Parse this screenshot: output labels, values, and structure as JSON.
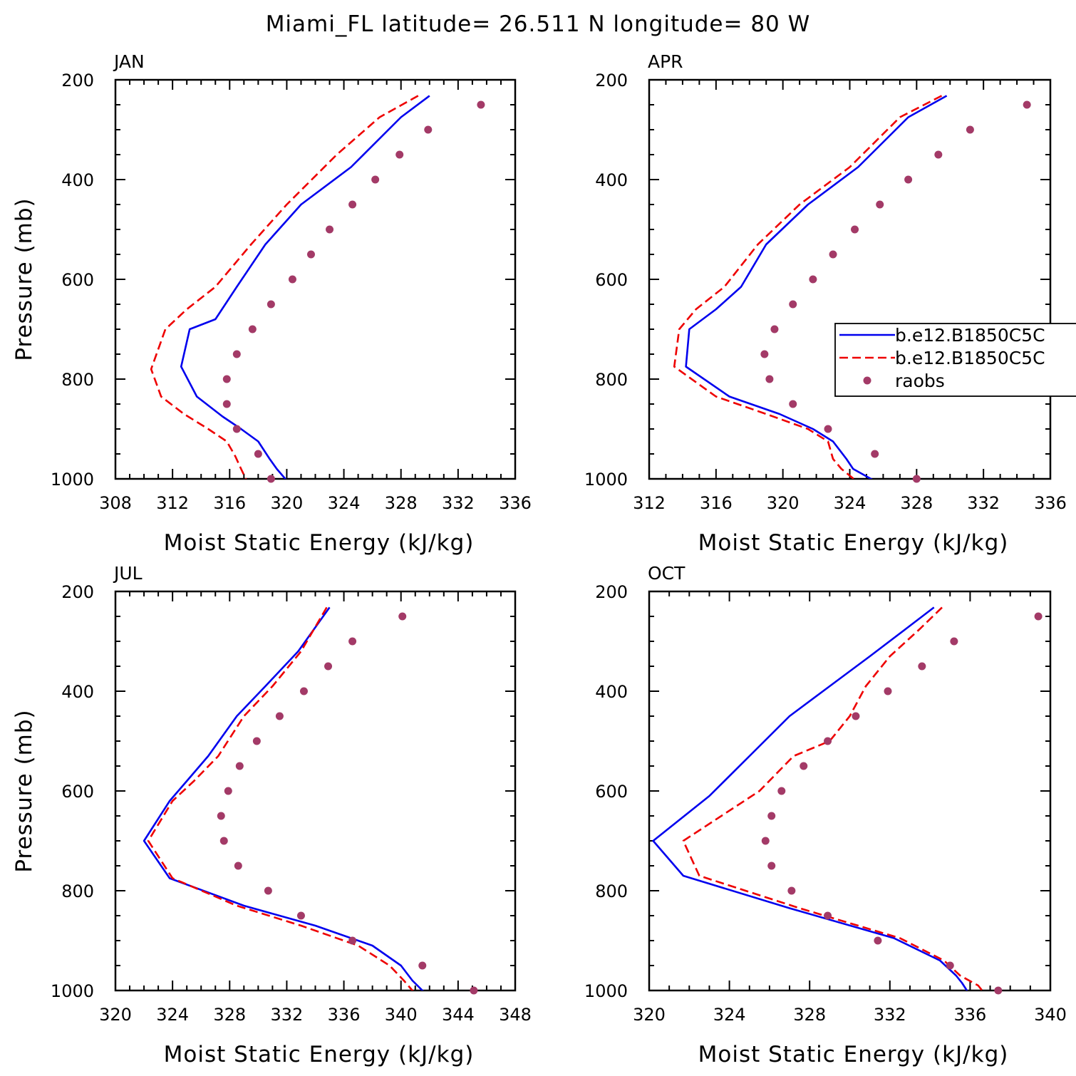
{
  "figure": {
    "title": "Miami_FL  latitude= 26.511 N longitude= 80 W"
  },
  "colors": {
    "model_a": "#0000ee",
    "model_b": "#ee0000",
    "raobs": "#a33a67"
  },
  "legend": {
    "entries": [
      {
        "label": "b.e12.B1850C5C",
        "style": "solid",
        "color": "#0000ee"
      },
      {
        "label": "b.e12.B1850C5C",
        "style": "dashed",
        "color": "#ee0000"
      },
      {
        "label": "raobs",
        "style": "marker",
        "color": "#a33a67"
      }
    ],
    "placement": "right, inside APR panel"
  },
  "chart_data": [
    {
      "type": "line",
      "panel": "JAN",
      "title": "JAN",
      "xlabel": "Moist Static Energy (kJ/kg)",
      "ylabel": "Pressure (mb)",
      "xlim": [
        308,
        336
      ],
      "ylim": [
        1000,
        200
      ],
      "xticks": [
        308,
        312,
        316,
        320,
        324,
        328,
        332,
        336
      ],
      "yticks": [
        200,
        400,
        600,
        800,
        1000
      ],
      "series": [
        {
          "name": "b.e12.B1850C5C",
          "style": "solid",
          "x": [
            330,
            328,
            324.5,
            321,
            318.5,
            316.5,
            315,
            313.2,
            312.6,
            313.7,
            315.5,
            316.8,
            318,
            318.8,
            319.3,
            320.2
          ],
          "y": [
            232,
            275,
            375,
            450,
            530,
            615,
            680,
            700,
            775,
            835,
            875,
            900,
            925,
            960,
            980,
            1010
          ]
        },
        {
          "name": "b.e12.B1850C5C",
          "style": "dashed",
          "x": [
            329.2,
            326.5,
            323.5,
            320,
            317.5,
            315,
            313,
            311.5,
            310.5,
            311.2,
            312.8,
            314.5,
            315.8,
            316.4,
            316.8,
            317.3
          ],
          "y": [
            232,
            275,
            350,
            450,
            530,
            615,
            660,
            700,
            780,
            835,
            870,
            900,
            925,
            955,
            980,
            1010
          ]
        },
        {
          "name": "raobs",
          "style": "marker",
          "x": [
            333.6,
            329.9,
            327.9,
            326.2,
            324.6,
            323,
            321.7,
            320.4,
            318.9,
            317.6,
            316.5,
            315.8,
            315.8,
            316.5,
            318,
            318.9
          ],
          "y": [
            250,
            300,
            350,
            400,
            450,
            500,
            550,
            600,
            650,
            700,
            750,
            800,
            850,
            900,
            950,
            1000
          ]
        }
      ]
    },
    {
      "type": "line",
      "panel": "APR",
      "title": "APR",
      "xlabel": "Moist Static Energy (kJ/kg)",
      "ylabel": "",
      "xlim": [
        312,
        336
      ],
      "ylim": [
        1000,
        200
      ],
      "xticks": [
        312,
        316,
        320,
        324,
        328,
        332,
        336
      ],
      "yticks": [
        200,
        400,
        600,
        800,
        1000
      ],
      "series": [
        {
          "name": "b.e12.B1850C5C",
          "style": "solid",
          "x": [
            329.8,
            327.5,
            324.5,
            321.5,
            319,
            317.5,
            316,
            314.4,
            314.2,
            316.8,
            319.8,
            321.8,
            323,
            323.8,
            324.2,
            325.8
          ],
          "y": [
            232,
            275,
            375,
            450,
            530,
            615,
            660,
            700,
            775,
            835,
            870,
            900,
            925,
            960,
            980,
            1010
          ]
        },
        {
          "name": "b.e12.B1850C5C",
          "style": "dashed",
          "x": [
            329.5,
            327,
            324,
            321,
            318.5,
            316.5,
            314.8,
            313.8,
            313.5,
            316,
            319,
            321.5,
            322.7,
            323,
            323.5,
            324.6
          ],
          "y": [
            232,
            275,
            375,
            450,
            530,
            615,
            660,
            700,
            775,
            835,
            870,
            900,
            925,
            960,
            980,
            1010
          ]
        },
        {
          "name": "raobs",
          "style": "marker",
          "x": [
            334.6,
            331.2,
            329.3,
            327.5,
            325.8,
            324.3,
            323,
            321.8,
            320.6,
            319.5,
            318.9,
            319.2,
            320.6,
            322.7,
            325.5,
            328
          ],
          "y": [
            250,
            300,
            350,
            400,
            450,
            500,
            550,
            600,
            650,
            700,
            750,
            800,
            850,
            900,
            950,
            1000
          ]
        }
      ]
    },
    {
      "type": "line",
      "panel": "JUL",
      "title": "JUL",
      "xlabel": "Moist Static Energy (kJ/kg)",
      "ylabel": "Pressure (mb)",
      "xlim": [
        320,
        348
      ],
      "ylim": [
        1000,
        200
      ],
      "xticks": [
        320,
        324,
        328,
        332,
        336,
        340,
        344,
        348
      ],
      "yticks": [
        200,
        400,
        600,
        800,
        1000
      ],
      "series": [
        {
          "name": "b.e12.B1850C5C",
          "style": "solid",
          "x": [
            335,
            332.8,
            330.5,
            328.5,
            326.5,
            325,
            323.8,
            322,
            323.8,
            329,
            334,
            338,
            340,
            340.8,
            341.5,
            342
          ],
          "y": [
            232,
            320,
            390,
            450,
            530,
            580,
            620,
            700,
            775,
            830,
            870,
            910,
            950,
            980,
            1000,
            1010
          ]
        },
        {
          "name": "b.e12.B1850C5C",
          "style": "dashed",
          "x": [
            334.8,
            333,
            331,
            329,
            327.2,
            325.5,
            324,
            322.3,
            324,
            328.5,
            333,
            337,
            339.2,
            340.2,
            340.8,
            341.5
          ],
          "y": [
            232,
            320,
            390,
            450,
            530,
            580,
            620,
            700,
            775,
            830,
            870,
            910,
            950,
            980,
            1000,
            1010
          ]
        },
        {
          "name": "raobs",
          "style": "marker",
          "x": [
            340.1,
            336.6,
            334.9,
            333.2,
            331.5,
            329.9,
            328.7,
            327.9,
            327.4,
            327.6,
            328.6,
            330.7,
            333,
            336.6,
            341.5,
            345.1
          ],
          "y": [
            250,
            300,
            350,
            400,
            450,
            500,
            550,
            600,
            650,
            700,
            750,
            800,
            850,
            900,
            950,
            1000
          ]
        }
      ]
    },
    {
      "type": "line",
      "panel": "OCT",
      "title": "OCT",
      "xlabel": "Moist Static Energy (kJ/kg)",
      "ylabel": "",
      "xlim": [
        320,
        340
      ],
      "ylim": [
        1000,
        200
      ],
      "xticks": [
        320,
        324,
        328,
        332,
        336,
        340
      ],
      "yticks": [
        200,
        400,
        600,
        800,
        1000
      ],
      "series": [
        {
          "name": "b.e12.B1850C5C",
          "style": "solid",
          "x": [
            334.2,
            332.8,
            331,
            329,
            327,
            325,
            323,
            320.2,
            321.7,
            327,
            332.2,
            334.5,
            335.3,
            335.6,
            336
          ],
          "y": [
            232,
            275,
            330,
            390,
            450,
            530,
            610,
            700,
            770,
            835,
            895,
            940,
            970,
            985,
            1010
          ]
        },
        {
          "name": "b.e12.B1850C5C",
          "style": "dashed",
          "x": [
            334.6,
            333.5,
            332,
            330.8,
            330,
            329,
            327.2,
            325.5,
            321.7,
            322.5,
            327.5,
            332.5,
            334.7,
            335.5,
            336.4,
            336.8
          ],
          "y": [
            232,
            275,
            330,
            390,
            450,
            500,
            530,
            600,
            700,
            770,
            835,
            895,
            940,
            970,
            990,
            1010
          ]
        },
        {
          "name": "raobs",
          "style": "marker",
          "x": [
            339.4,
            335.2,
            333.6,
            331.9,
            330.3,
            328.9,
            327.7,
            326.6,
            326.1,
            325.8,
            326.1,
            327.1,
            328.9,
            331.4,
            335,
            337.4
          ],
          "y": [
            250,
            300,
            350,
            400,
            450,
            500,
            550,
            600,
            650,
            700,
            750,
            800,
            850,
            900,
            950,
            1000
          ]
        }
      ]
    }
  ]
}
